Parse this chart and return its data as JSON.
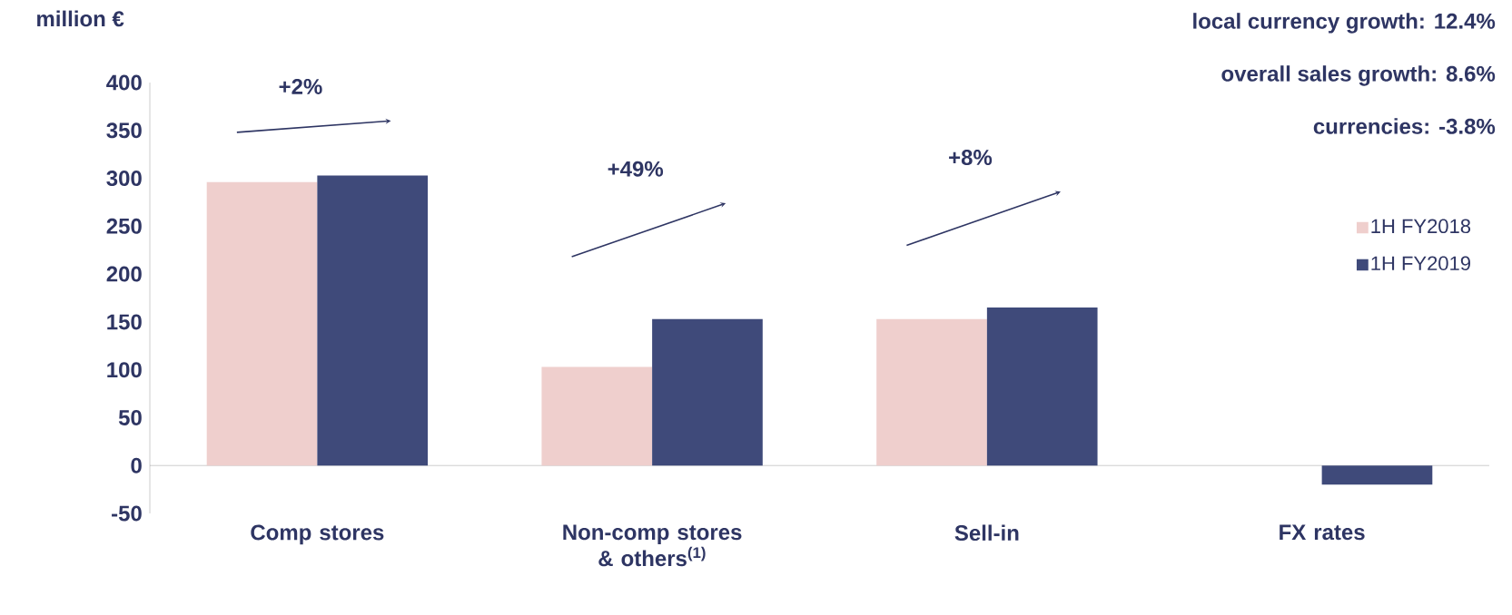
{
  "chart_data": {
    "type": "bar",
    "ylabel": "million €",
    "categories": [
      "Comp stores",
      "Non-comp stores & others$^{(1)}$",
      "Sell-in",
      "FX rates"
    ],
    "series": [
      {
        "name": "1H FY2018",
        "color": "#efcfcd",
        "values": [
          296,
          103,
          153,
          null
        ]
      },
      {
        "name": "1H FY2019",
        "color": "#3f4a7a",
        "values": [
          303,
          153,
          165,
          -20
        ]
      }
    ],
    "ylim": [
      -50,
      400
    ],
    "yticks": [
      -50,
      0,
      50,
      100,
      150,
      200,
      250,
      300,
      350,
      400
    ],
    "legend": "right",
    "annotations": [
      "+2%",
      "+49%",
      "+8%",
      "local currency growth: 12.4%",
      "overall sales growth: 8.6%",
      "currencies: -3.8%"
    ]
  }
}
